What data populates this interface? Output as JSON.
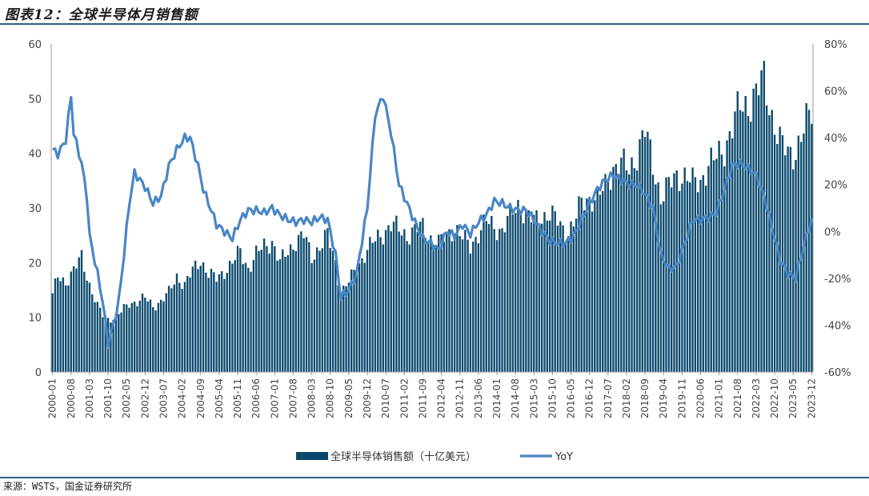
{
  "title": "图表12：全球半导体月销售额",
  "source": "来源：WSTS，国金证券研究所",
  "chart_data": {
    "type": "bar+line",
    "bar_series_name": "全球半导体销售额（十亿美元）",
    "line_series_name": "YoY",
    "bar_color": "#0b4a6e",
    "line_color": "#4a86c5",
    "left_axis": {
      "min": 0,
      "max": 60,
      "ticks": [
        "0",
        "10",
        "20",
        "30",
        "40",
        "50",
        "60"
      ]
    },
    "right_axis": {
      "min": -60,
      "max": 80,
      "ticks": [
        "-60%",
        "-40%",
        "-20%",
        "0%",
        "20%",
        "40%",
        "60%",
        "80%"
      ]
    },
    "x_tick_labels": [
      "2000-01",
      "2000-08",
      "2001-03",
      "2001-10",
      "2002-05",
      "2002-12",
      "2003-07",
      "2004-02",
      "2004-09",
      "2005-04",
      "2005-11",
      "2006-06",
      "2007-01",
      "2007-08",
      "2008-03",
      "2008-10",
      "2009-05",
      "2009-12",
      "2010-07",
      "2011-02",
      "2011-09",
      "2012-04",
      "2012-11",
      "2013-06",
      "2014-01",
      "2014-08",
      "2015-03",
      "2015-10",
      "2016-05",
      "2016-12",
      "2017-07",
      "2018-02",
      "2018-09",
      "2019-04",
      "2019-11",
      "2020-06",
      "2021-01",
      "2021-08",
      "2022-03",
      "2022-10",
      "2023-05",
      "2023-12"
    ],
    "sales_anchors": [
      [
        "2000-01",
        14.0
      ],
      [
        "2000-03",
        17.5
      ],
      [
        "2000-06",
        16.5
      ],
      [
        "2000-09",
        18.5
      ],
      [
        "2000-12",
        21.0
      ],
      [
        "2001-03",
        16.0
      ],
      [
        "2001-06",
        12.0
      ],
      [
        "2001-09",
        9.5
      ],
      [
        "2001-12",
        10.0
      ],
      [
        "2002-03",
        11.0
      ],
      [
        "2002-06",
        12.5
      ],
      [
        "2002-12",
        13.5
      ],
      [
        "2003-03",
        12.0
      ],
      [
        "2003-06",
        13.0
      ],
      [
        "2003-09",
        14.5
      ],
      [
        "2003-12",
        17.5
      ],
      [
        "2004-03",
        16.0
      ],
      [
        "2004-06",
        18.5
      ],
      [
        "2004-09",
        20.5
      ],
      [
        "2004-12",
        18.0
      ],
      [
        "2005-03",
        17.0
      ],
      [
        "2005-06",
        18.5
      ],
      [
        "2005-09",
        20.0
      ],
      [
        "2005-12",
        22.0
      ],
      [
        "2006-03",
        19.0
      ],
      [
        "2006-06",
        21.5
      ],
      [
        "2006-09",
        23.0
      ],
      [
        "2006-12",
        24.0
      ],
      [
        "2007-03",
        20.0
      ],
      [
        "2007-06",
        22.0
      ],
      [
        "2007-09",
        24.0
      ],
      [
        "2007-12",
        25.0
      ],
      [
        "2008-03",
        21.0
      ],
      [
        "2008-06",
        23.0
      ],
      [
        "2008-09",
        25.0
      ],
      [
        "2008-12",
        20.0
      ],
      [
        "2009-02",
        14.5
      ],
      [
        "2009-05",
        16.5
      ],
      [
        "2009-08",
        19.0
      ],
      [
        "2009-12",
        22.5
      ],
      [
        "2010-03",
        24.0
      ],
      [
        "2010-06",
        25.5
      ],
      [
        "2010-09",
        27.0
      ],
      [
        "2010-12",
        26.0
      ],
      [
        "2011-03",
        25.0
      ],
      [
        "2011-06",
        26.0
      ],
      [
        "2011-09",
        26.5
      ],
      [
        "2011-12",
        24.5
      ],
      [
        "2012-03",
        23.5
      ],
      [
        "2012-06",
        25.0
      ],
      [
        "2012-09",
        26.5
      ],
      [
        "2012-12",
        24.5
      ],
      [
        "2013-03",
        23.0
      ],
      [
        "2013-06",
        25.5
      ],
      [
        "2013-09",
        27.5
      ],
      [
        "2013-12",
        26.5
      ],
      [
        "2014-03",
        26.0
      ],
      [
        "2014-06",
        28.5
      ],
      [
        "2014-09",
        30.5
      ],
      [
        "2014-12",
        29.0
      ],
      [
        "2015-03",
        27.5
      ],
      [
        "2015-06",
        28.5
      ],
      [
        "2015-09",
        29.0
      ],
      [
        "2015-12",
        27.5
      ],
      [
        "2016-03",
        25.5
      ],
      [
        "2016-06",
        27.0
      ],
      [
        "2016-09",
        31.0
      ],
      [
        "2016-12",
        32.0
      ],
      [
        "2017-03",
        31.5
      ],
      [
        "2017-06",
        34.0
      ],
      [
        "2017-09",
        37.5
      ],
      [
        "2017-12",
        38.0
      ],
      [
        "2018-03",
        37.0
      ],
      [
        "2018-06",
        40.0
      ],
      [
        "2018-09",
        44.0
      ],
      [
        "2018-12",
        38.0
      ],
      [
        "2019-03",
        32.0
      ],
      [
        "2019-06",
        34.0
      ],
      [
        "2019-09",
        36.0
      ],
      [
        "2019-12",
        36.0
      ],
      [
        "2020-03",
        34.5
      ],
      [
        "2020-06",
        35.0
      ],
      [
        "2020-09",
        38.0
      ],
      [
        "2020-12",
        39.0
      ],
      [
        "2021-03",
        41.0
      ],
      [
        "2021-06",
        45.0
      ],
      [
        "2021-09",
        48.5
      ],
      [
        "2021-12",
        49.0
      ],
      [
        "2022-03",
        51.0
      ],
      [
        "2022-06",
        53.5
      ],
      [
        "2022-09",
        47.0
      ],
      [
        "2022-12",
        42.0
      ],
      [
        "2023-03",
        40.0
      ],
      [
        "2023-06",
        40.5
      ],
      [
        "2023-09",
        44.0
      ],
      [
        "2023-12",
        48.0
      ]
    ],
    "yoy_anchors": [
      [
        "2000-01",
        35
      ],
      [
        "2000-03",
        33
      ],
      [
        "2000-06",
        39
      ],
      [
        "2000-08",
        58
      ],
      [
        "2000-09",
        42
      ],
      [
        "2000-12",
        29
      ],
      [
        "2001-02",
        15
      ],
      [
        "2001-03",
        -2
      ],
      [
        "2001-06",
        -18
      ],
      [
        "2001-08",
        -30
      ],
      [
        "2001-10",
        -48
      ],
      [
        "2001-12",
        -40
      ],
      [
        "2002-02",
        -30
      ],
      [
        "2002-04",
        -10
      ],
      [
        "2002-06",
        12
      ],
      [
        "2002-08",
        25
      ],
      [
        "2002-12",
        19
      ],
      [
        "2003-03",
        12
      ],
      [
        "2003-06",
        15
      ],
      [
        "2003-09",
        28
      ],
      [
        "2003-12",
        35
      ],
      [
        "2004-03",
        40
      ],
      [
        "2004-05",
        40
      ],
      [
        "2004-08",
        28
      ],
      [
        "2004-10",
        18
      ],
      [
        "2004-12",
        12
      ],
      [
        "2005-03",
        3
      ],
      [
        "2005-06",
        0
      ],
      [
        "2005-09",
        -3
      ],
      [
        "2005-12",
        5
      ],
      [
        "2006-03",
        9
      ],
      [
        "2006-06",
        9
      ],
      [
        "2006-09",
        8
      ],
      [
        "2006-12",
        10
      ],
      [
        "2007-03",
        7
      ],
      [
        "2007-06",
        5
      ],
      [
        "2007-09",
        4
      ],
      [
        "2007-12",
        5
      ],
      [
        "2008-03",
        4
      ],
      [
        "2008-06",
        6
      ],
      [
        "2008-09",
        5
      ],
      [
        "2008-12",
        -10
      ],
      [
        "2009-02",
        -28
      ],
      [
        "2009-05",
        -25
      ],
      [
        "2009-08",
        -18
      ],
      [
        "2009-12",
        10
      ],
      [
        "2010-03",
        50
      ],
      [
        "2010-06",
        58
      ],
      [
        "2010-09",
        42
      ],
      [
        "2010-12",
        20
      ],
      [
        "2011-03",
        12
      ],
      [
        "2011-06",
        4
      ],
      [
        "2011-09",
        -3
      ],
      [
        "2011-12",
        -5
      ],
      [
        "2012-03",
        -8
      ],
      [
        "2012-06",
        0
      ],
      [
        "2012-09",
        -2
      ],
      [
        "2012-12",
        3
      ],
      [
        "2013-03",
        -1
      ],
      [
        "2013-06",
        4
      ],
      [
        "2013-09",
        7
      ],
      [
        "2013-12",
        13
      ],
      [
        "2014-03",
        12
      ],
      [
        "2014-06",
        10
      ],
      [
        "2014-09",
        9
      ],
      [
        "2014-12",
        9
      ],
      [
        "2015-03",
        5
      ],
      [
        "2015-06",
        0
      ],
      [
        "2015-09",
        -4
      ],
      [
        "2015-12",
        -5
      ],
      [
        "2016-03",
        -5
      ],
      [
        "2016-06",
        -2
      ],
      [
        "2016-09",
        5
      ],
      [
        "2016-12",
        12
      ],
      [
        "2017-03",
        18
      ],
      [
        "2017-06",
        22
      ],
      [
        "2017-09",
        24
      ],
      [
        "2017-12",
        22
      ],
      [
        "2018-03",
        20
      ],
      [
        "2018-06",
        20
      ],
      [
        "2018-09",
        16
      ],
      [
        "2018-12",
        10
      ],
      [
        "2019-03",
        -10
      ],
      [
        "2019-06",
        -16
      ],
      [
        "2019-09",
        -15
      ],
      [
        "2019-12",
        -5
      ],
      [
        "2020-03",
        5
      ],
      [
        "2020-06",
        5
      ],
      [
        "2020-09",
        6
      ],
      [
        "2020-12",
        8
      ],
      [
        "2021-03",
        18
      ],
      [
        "2021-06",
        28
      ],
      [
        "2021-09",
        29
      ],
      [
        "2021-12",
        27
      ],
      [
        "2022-03",
        24
      ],
      [
        "2022-06",
        15
      ],
      [
        "2022-09",
        2
      ],
      [
        "2022-12",
        -12
      ],
      [
        "2023-03",
        -18
      ],
      [
        "2023-06",
        -20
      ],
      [
        "2023-09",
        -6
      ],
      [
        "2023-12",
        5
      ]
    ]
  }
}
